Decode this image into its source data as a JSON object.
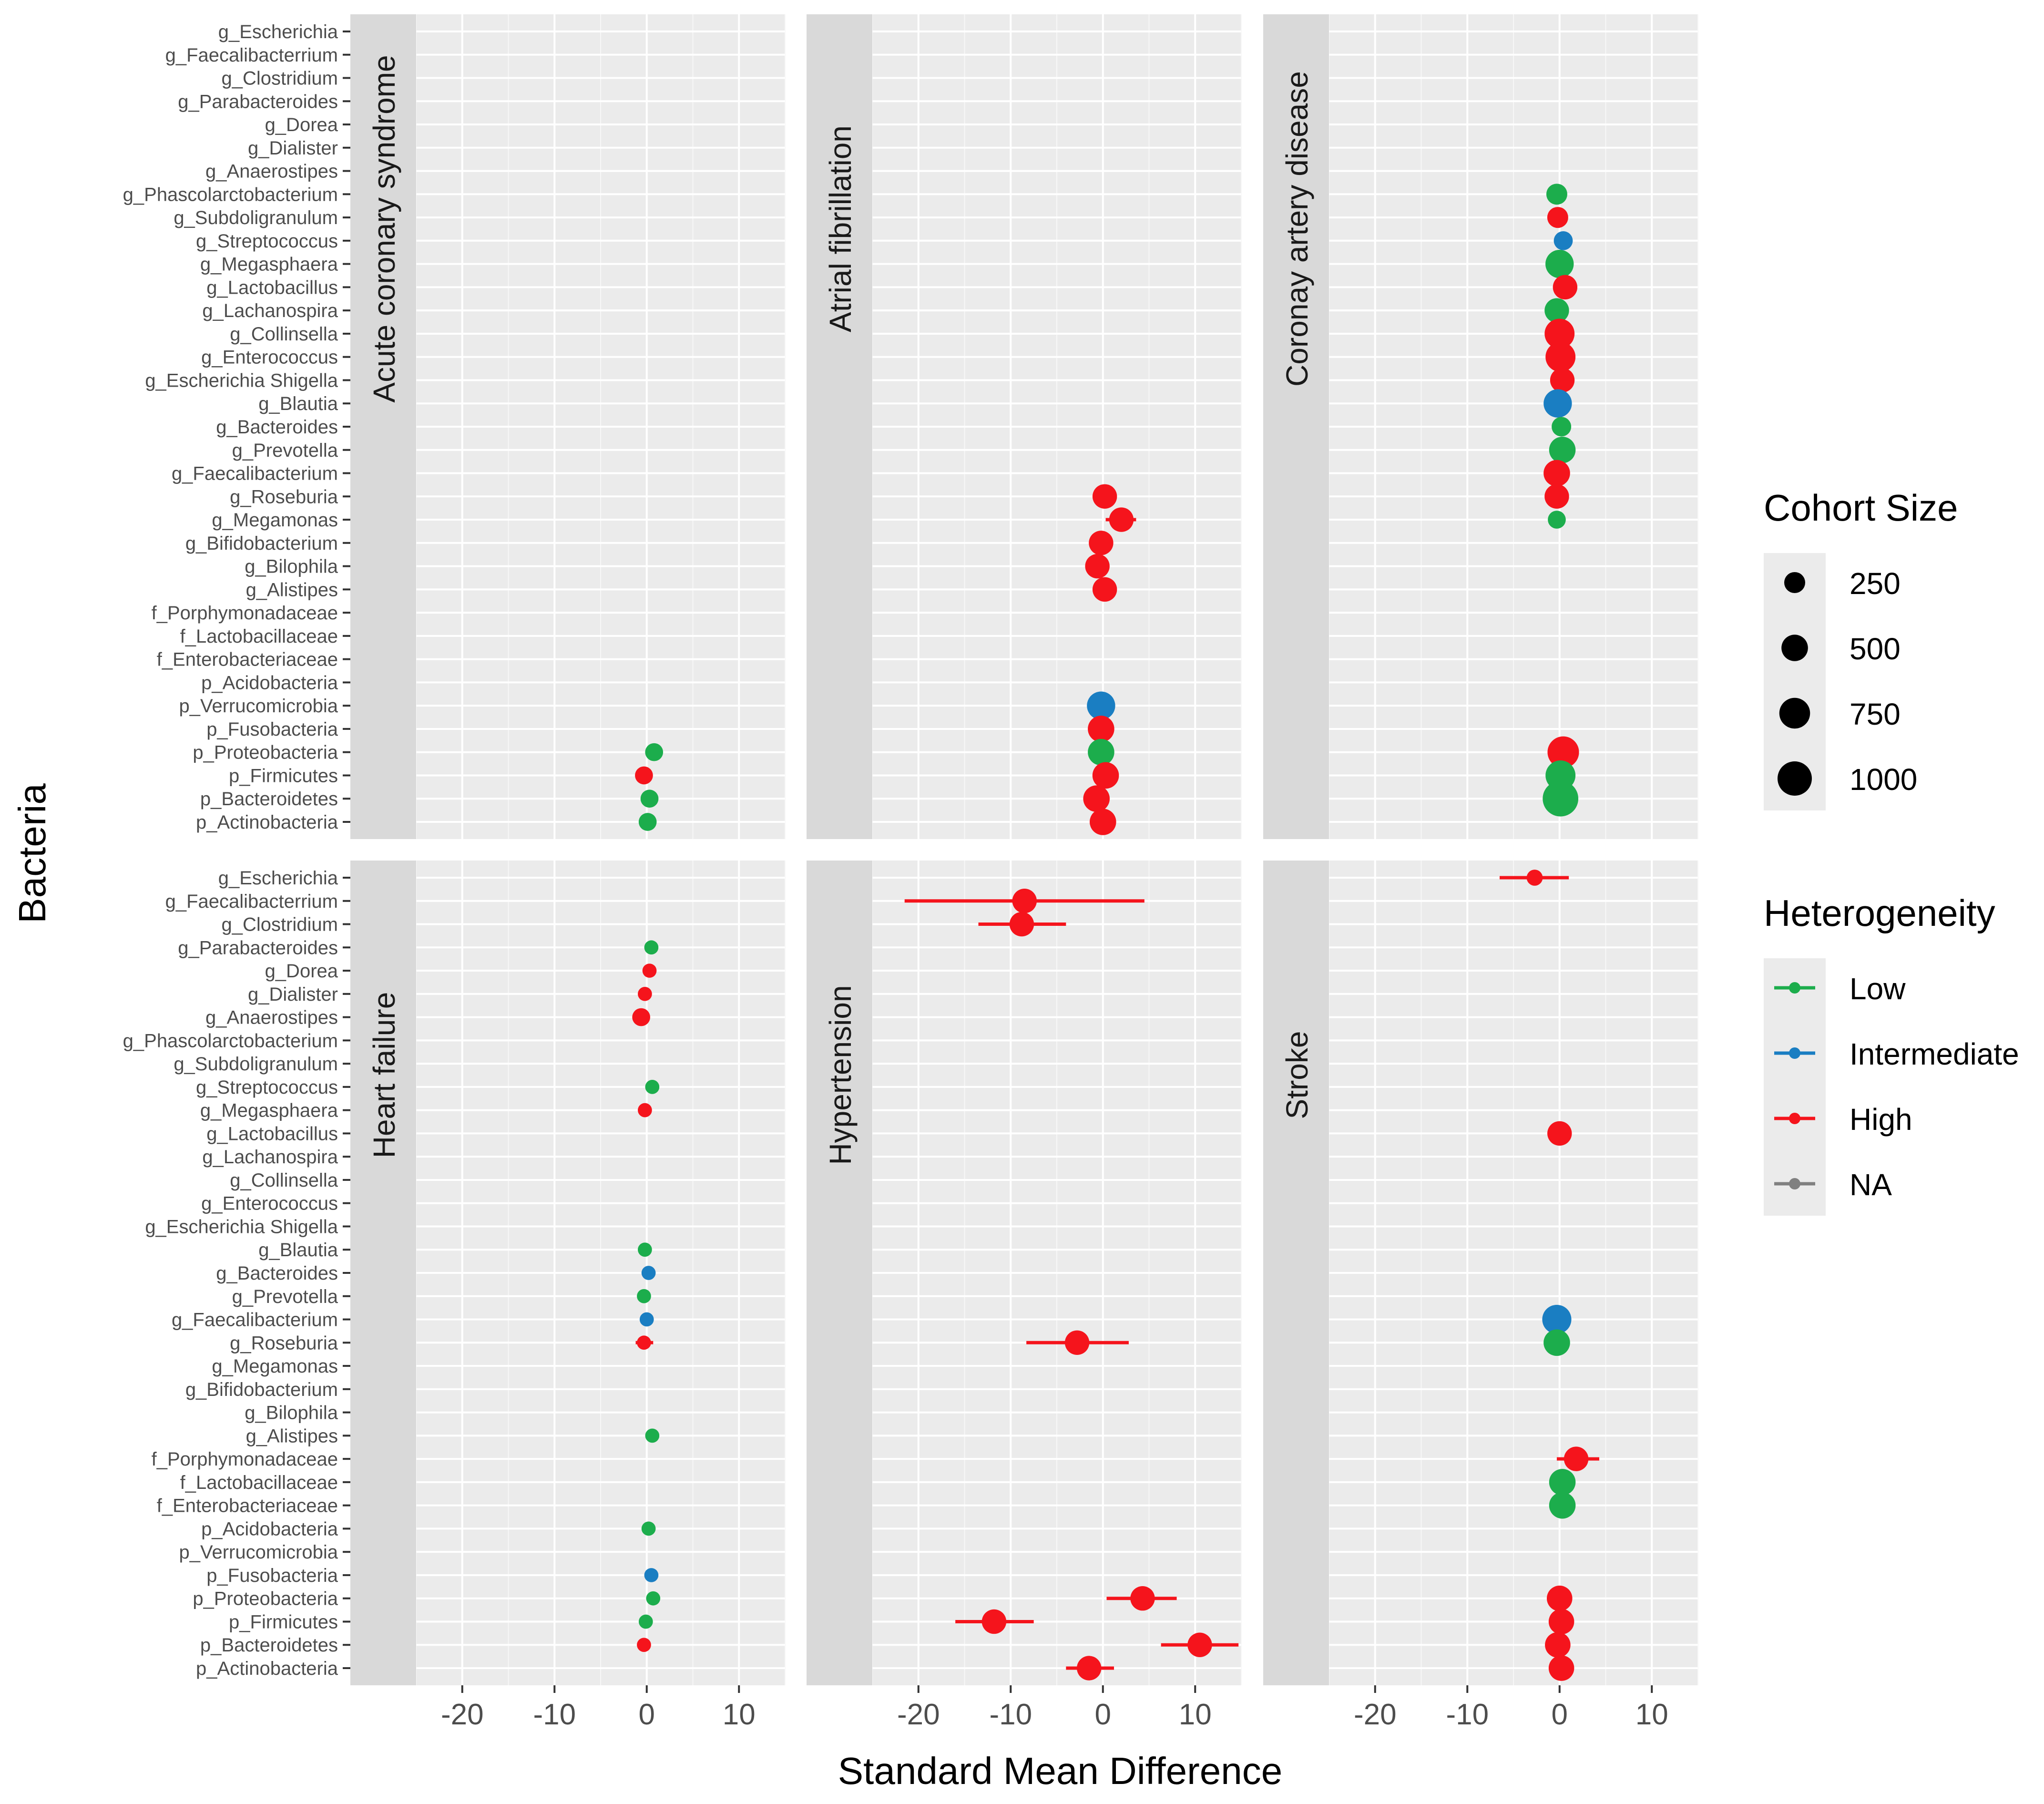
{
  "chart_data": {
    "type": "scatter",
    "subtype": "faceted forest plot (points with error bars)",
    "xlabel": "Standard Mean Difference",
    "ylabel": "Bacteria",
    "xlim": [
      -25,
      15
    ],
    "xticks": [
      -20,
      -10,
      0,
      10
    ],
    "categories": [
      "g_Escherichia",
      "g_Faecalibacterrium",
      "g_Clostridium",
      "g_Parabacteroides",
      "g_Dorea",
      "g_Dialister",
      "g_Anaerostipes",
      "g_Phascolarctobacterium",
      "g_Subdoligranulum",
      "g_Streptococcus",
      "g_Megasphaera",
      "g_Lactobacillus",
      "g_Lachanospira",
      "g_Collinsella",
      "g_Enterococcus",
      "g_Escherichia Shigella",
      "g_Blautia",
      "g_Bacteroides",
      "g_Prevotella",
      "g_Faecalibacterium",
      "g_Roseburia",
      "g_Megamonas",
      "g_Bifidobacterium",
      "g_Bilophila",
      "g_Alistipes",
      "f_Porphymonadaceae",
      "f_Lactobacillaceae",
      "f_Enterobacteriaceae",
      "p_Acidobacteria",
      "p_Verrucomicrobia",
      "p_Fusobacteria",
      "p_Proteobacteria",
      "p_Firmicutes",
      "p_Bacteroidetes",
      "p_Actinobacteria"
    ],
    "legend": {
      "placement": "right",
      "size_title": "Cohort Size",
      "size_levels": [
        250,
        500,
        750,
        1000
      ],
      "size_labels": [
        "250",
        "500",
        "750",
        "1000"
      ],
      "color_title": "Heterogeneity",
      "color_levels": [
        {
          "label": "Low",
          "color": "#1cad4c"
        },
        {
          "label": "Intermediate",
          "color": "#1a7ec2"
        },
        {
          "label": "High",
          "color": "#f5141c"
        },
        {
          "label": "NA",
          "color": "#808080"
        }
      ]
    },
    "facets": [
      {
        "title": "Acute coronary syndrome",
        "points": [
          {
            "bacterium": "p_Proteobacteria",
            "smd": 0.8,
            "lo": 0.7,
            "hi": 0.9,
            "n": 150,
            "het": "Low"
          },
          {
            "bacterium": "p_Firmicutes",
            "smd": -0.3,
            "lo": -0.4,
            "hi": -0.2,
            "n": 150,
            "het": "High"
          },
          {
            "bacterium": "p_Bacteroidetes",
            "smd": 0.3,
            "lo": 0.2,
            "hi": 0.4,
            "n": 150,
            "het": "Low"
          },
          {
            "bacterium": "p_Actinobacteria",
            "smd": 0.1,
            "lo": 0.0,
            "hi": 0.2,
            "n": 150,
            "het": "Low"
          }
        ]
      },
      {
        "title": "Atrial fibrillation",
        "points": [
          {
            "bacterium": "g_Roseburia",
            "smd": 0.2,
            "lo": 0.1,
            "hi": 0.3,
            "n": 400,
            "het": "High"
          },
          {
            "bacterium": "g_Megamonas",
            "smd": 2.0,
            "lo": 0.3,
            "hi": 3.6,
            "n": 400,
            "het": "High"
          },
          {
            "bacterium": "g_Bifidobacterium",
            "smd": -0.2,
            "lo": -0.3,
            "hi": -0.1,
            "n": 400,
            "het": "High"
          },
          {
            "bacterium": "g_Bilophila",
            "smd": -0.6,
            "lo": -0.7,
            "hi": -0.5,
            "n": 400,
            "het": "High"
          },
          {
            "bacterium": "g_Alistipes",
            "smd": 0.2,
            "lo": 0.1,
            "hi": 0.3,
            "n": 400,
            "het": "High"
          },
          {
            "bacterium": "p_Verrucomicrobia",
            "smd": -0.2,
            "lo": -0.3,
            "hi": -0.1,
            "n": 600,
            "het": "Intermediate"
          },
          {
            "bacterium": "p_Fusobacteria",
            "smd": -0.2,
            "lo": -0.3,
            "hi": -0.1,
            "n": 500,
            "het": "High"
          },
          {
            "bacterium": "p_Proteobacteria",
            "smd": -0.2,
            "lo": -0.3,
            "hi": -0.1,
            "n": 500,
            "het": "Low"
          },
          {
            "bacterium": "p_Firmicutes",
            "smd": 0.3,
            "lo": 0.2,
            "hi": 0.4,
            "n": 500,
            "het": "High"
          },
          {
            "bacterium": "p_Bacteroidetes",
            "smd": -0.7,
            "lo": -0.8,
            "hi": -0.6,
            "n": 500,
            "het": "High"
          },
          {
            "bacterium": "p_Actinobacteria",
            "smd": 0.0,
            "lo": -0.1,
            "hi": 0.1,
            "n": 500,
            "het": "High"
          }
        ]
      },
      {
        "title": "Coronay artery disease",
        "points": [
          {
            "bacterium": "g_Phascolarctobacterium",
            "smd": -0.3,
            "lo": -0.4,
            "hi": -0.2,
            "n": 250,
            "het": "Low"
          },
          {
            "bacterium": "g_Subdoligranulum",
            "smd": -0.2,
            "lo": -0.3,
            "hi": -0.1,
            "n": 250,
            "het": "High"
          },
          {
            "bacterium": "g_Streptococcus",
            "smd": 0.4,
            "lo": 0.3,
            "hi": 0.5,
            "n": 180,
            "het": "Intermediate"
          },
          {
            "bacterium": "g_Megasphaera",
            "smd": 0.0,
            "lo": -0.1,
            "hi": 0.1,
            "n": 600,
            "het": "Low"
          },
          {
            "bacterium": "g_Lactobacillus",
            "smd": 0.6,
            "lo": 0.5,
            "hi": 0.7,
            "n": 400,
            "het": "High"
          },
          {
            "bacterium": "g_Lachanospira",
            "smd": -0.3,
            "lo": -0.4,
            "hi": -0.2,
            "n": 400,
            "het": "Low"
          },
          {
            "bacterium": "g_Collinsella",
            "smd": 0.0,
            "lo": -0.1,
            "hi": 0.1,
            "n": 700,
            "het": "High"
          },
          {
            "bacterium": "g_Enterococcus",
            "smd": 0.1,
            "lo": 0.0,
            "hi": 0.2,
            "n": 700,
            "het": "High"
          },
          {
            "bacterium": "g_Escherichia Shigella",
            "smd": 0.3,
            "lo": 0.2,
            "hi": 0.4,
            "n": 400,
            "het": "High"
          },
          {
            "bacterium": "g_Blautia",
            "smd": -0.2,
            "lo": -0.3,
            "hi": -0.1,
            "n": 600,
            "het": "Intermediate"
          },
          {
            "bacterium": "g_Bacteroides",
            "smd": 0.2,
            "lo": 0.1,
            "hi": 0.3,
            "n": 200,
            "het": "Low"
          },
          {
            "bacterium": "g_Prevotella",
            "smd": 0.3,
            "lo": 0.2,
            "hi": 0.4,
            "n": 500,
            "het": "Low"
          },
          {
            "bacterium": "g_Faecalibacterium",
            "smd": -0.3,
            "lo": -0.4,
            "hi": -0.2,
            "n": 500,
            "het": "High"
          },
          {
            "bacterium": "g_Roseburia",
            "smd": -0.3,
            "lo": -0.4,
            "hi": -0.2,
            "n": 400,
            "het": "High"
          },
          {
            "bacterium": "g_Megamonas",
            "smd": -0.3,
            "lo": -0.4,
            "hi": -0.2,
            "n": 150,
            "het": "Low"
          },
          {
            "bacterium": "p_Proteobacteria",
            "smd": 0.4,
            "lo": 0.3,
            "hi": 0.5,
            "n": 800,
            "het": "High"
          },
          {
            "bacterium": "p_Firmicutes",
            "smd": 0.1,
            "lo": 0.0,
            "hi": 0.2,
            "n": 700,
            "het": "Low"
          },
          {
            "bacterium": "p_Bacteroidetes",
            "smd": 0.1,
            "lo": 0.0,
            "hi": 0.2,
            "n": 1100,
            "het": "Low"
          }
        ]
      },
      {
        "title": "Heart failure",
        "points": [
          {
            "bacterium": "g_Parabacteroides",
            "smd": 0.5,
            "lo": 0.4,
            "hi": 0.6,
            "n": 60,
            "het": "Low"
          },
          {
            "bacterium": "g_Dorea",
            "smd": 0.3,
            "lo": 0.2,
            "hi": 0.4,
            "n": 60,
            "het": "High"
          },
          {
            "bacterium": "g_Dialister",
            "smd": -0.2,
            "lo": -0.3,
            "hi": -0.1,
            "n": 60,
            "het": "High"
          },
          {
            "bacterium": "g_Anaerostipes",
            "smd": -0.6,
            "lo": -0.7,
            "hi": -0.5,
            "n": 150,
            "het": "High"
          },
          {
            "bacterium": "g_Streptococcus",
            "smd": 0.6,
            "lo": 0.5,
            "hi": 0.7,
            "n": 60,
            "het": "Low"
          },
          {
            "bacterium": "g_Megasphaera",
            "smd": -0.2,
            "lo": -0.3,
            "hi": -0.1,
            "n": 60,
            "het": "High"
          },
          {
            "bacterium": "g_Blautia",
            "smd": -0.2,
            "lo": -0.3,
            "hi": -0.1,
            "n": 60,
            "het": "Low"
          },
          {
            "bacterium": "g_Bacteroides",
            "smd": 0.2,
            "lo": 0.1,
            "hi": 0.3,
            "n": 60,
            "het": "Intermediate"
          },
          {
            "bacterium": "g_Prevotella",
            "smd": -0.3,
            "lo": -0.4,
            "hi": -0.2,
            "n": 60,
            "het": "Low"
          },
          {
            "bacterium": "g_Faecalibacterium",
            "smd": 0.0,
            "lo": -0.1,
            "hi": 0.1,
            "n": 60,
            "het": "Intermediate"
          },
          {
            "bacterium": "g_Roseburia",
            "smd": -0.3,
            "lo": -1.2,
            "hi": 0.7,
            "n": 60,
            "het": "High"
          },
          {
            "bacterium": "g_Alistipes",
            "smd": 0.6,
            "lo": 0.5,
            "hi": 0.7,
            "n": 60,
            "het": "Low"
          },
          {
            "bacterium": "p_Acidobacteria",
            "smd": 0.2,
            "lo": 0.1,
            "hi": 0.3,
            "n": 60,
            "het": "Low"
          },
          {
            "bacterium": "p_Fusobacteria",
            "smd": 0.5,
            "lo": 0.4,
            "hi": 0.6,
            "n": 60,
            "het": "Intermediate"
          },
          {
            "bacterium": "p_Proteobacteria",
            "smd": 0.7,
            "lo": 0.6,
            "hi": 0.8,
            "n": 60,
            "het": "Low"
          },
          {
            "bacterium": "p_Firmicutes",
            "smd": -0.1,
            "lo": -0.2,
            "hi": 0.0,
            "n": 60,
            "het": "Low"
          },
          {
            "bacterium": "p_Bacteroidetes",
            "smd": -0.3,
            "lo": -0.6,
            "hi": 0.0,
            "n": 60,
            "het": "High"
          }
        ]
      },
      {
        "title": "Hypertension",
        "points": [
          {
            "bacterium": "g_Faecalibacterrium",
            "smd": -8.5,
            "lo": -21.5,
            "hi": 4.5,
            "n": 400,
            "het": "High"
          },
          {
            "bacterium": "g_Clostridium",
            "smd": -8.8,
            "lo": -13.5,
            "hi": -4.0,
            "n": 400,
            "het": "High"
          },
          {
            "bacterium": "g_Roseburia",
            "smd": -2.8,
            "lo": -8.3,
            "hi": 2.8,
            "n": 400,
            "het": "High"
          },
          {
            "bacterium": "p_Proteobacteria",
            "smd": 4.3,
            "lo": 0.4,
            "hi": 8.0,
            "n": 400,
            "het": "High"
          },
          {
            "bacterium": "p_Firmicutes",
            "smd": -11.8,
            "lo": -16.0,
            "hi": -7.5,
            "n": 400,
            "het": "High"
          },
          {
            "bacterium": "p_Bacteroidetes",
            "smd": 10.5,
            "lo": 6.3,
            "hi": 14.7,
            "n": 400,
            "het": "High"
          },
          {
            "bacterium": "p_Actinobacteria",
            "smd": -1.5,
            "lo": -4.0,
            "hi": 1.2,
            "n": 400,
            "het": "High"
          }
        ]
      },
      {
        "title": "Stroke",
        "points": [
          {
            "bacterium": "g_Escherichia",
            "smd": -2.7,
            "lo": -6.5,
            "hi": 1.0,
            "n": 100,
            "het": "High"
          },
          {
            "bacterium": "g_Lactobacillus",
            "smd": 0.0,
            "lo": -0.1,
            "hi": 0.1,
            "n": 400,
            "het": "High"
          },
          {
            "bacterium": "g_Faecalibacterium",
            "smd": -0.3,
            "lo": -0.4,
            "hi": -0.2,
            "n": 650,
            "het": "Intermediate"
          },
          {
            "bacterium": "g_Roseburia",
            "smd": -0.3,
            "lo": -0.4,
            "hi": -0.2,
            "n": 500,
            "het": "Low"
          },
          {
            "bacterium": "f_Porphymonadaceae",
            "smd": 1.8,
            "lo": -0.3,
            "hi": 4.3,
            "n": 400,
            "het": "High"
          },
          {
            "bacterium": "f_Lactobacillaceae",
            "smd": 0.3,
            "lo": 0.2,
            "hi": 0.4,
            "n": 500,
            "het": "Low"
          },
          {
            "bacterium": "f_Enterobacteriaceae",
            "smd": 0.3,
            "lo": 0.2,
            "hi": 0.4,
            "n": 500,
            "het": "Low"
          },
          {
            "bacterium": "p_Proteobacteria",
            "smd": 0.0,
            "lo": -0.1,
            "hi": 0.1,
            "n": 450,
            "het": "High"
          },
          {
            "bacterium": "p_Firmicutes",
            "smd": 0.2,
            "lo": 0.1,
            "hi": 0.3,
            "n": 450,
            "het": "High"
          },
          {
            "bacterium": "p_Bacteroidetes",
            "smd": -0.2,
            "lo": -0.3,
            "hi": -0.1,
            "n": 450,
            "het": "High"
          },
          {
            "bacterium": "p_Actinobacteria",
            "smd": 0.2,
            "lo": 0.1,
            "hi": 0.3,
            "n": 450,
            "het": "High"
          }
        ]
      }
    ]
  }
}
